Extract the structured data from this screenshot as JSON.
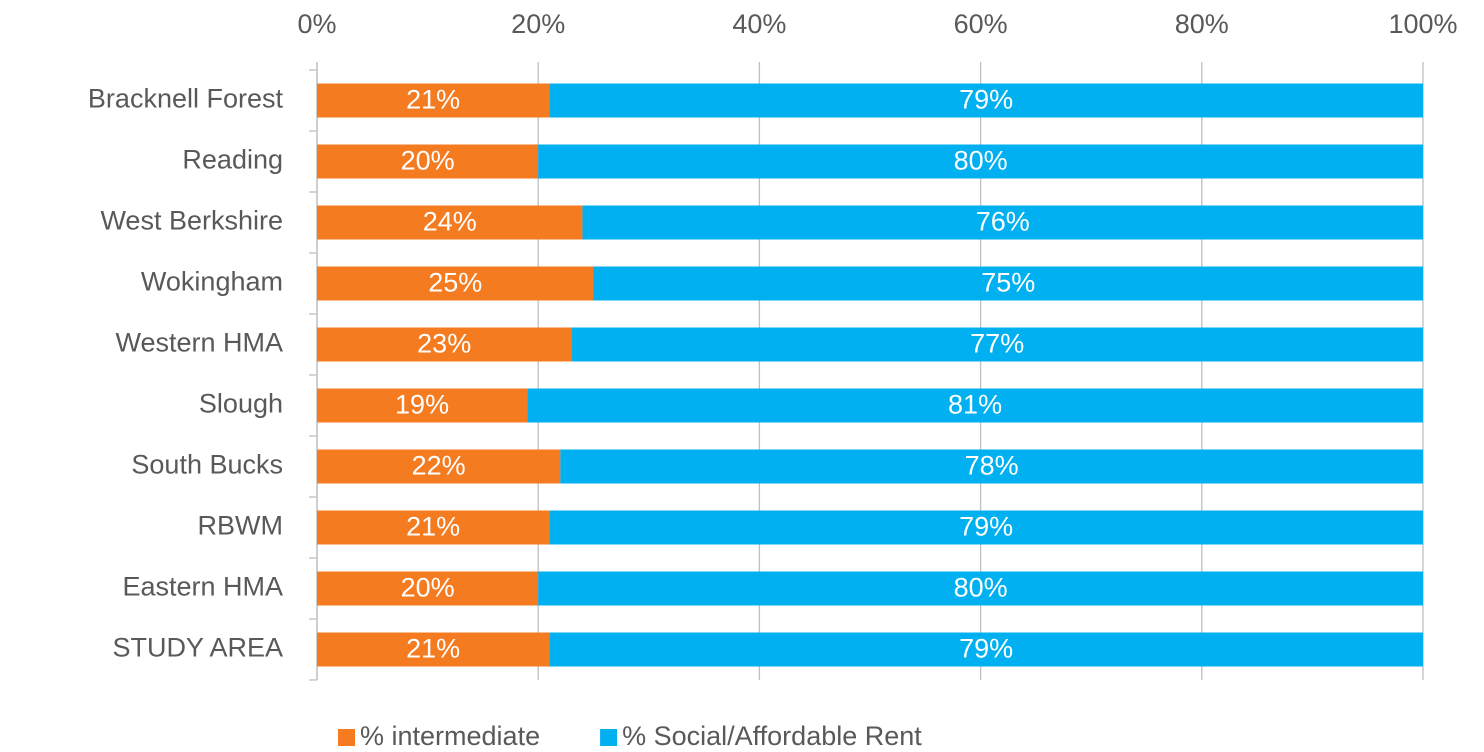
{
  "chart_data": {
    "type": "bar",
    "orientation": "horizontal",
    "stacked": true,
    "categories": [
      "Bracknell Forest",
      "Reading",
      "West Berkshire",
      "Wokingham",
      "Western HMA",
      "Slough",
      "South Bucks",
      "RBWM",
      "Eastern HMA",
      "STUDY AREA"
    ],
    "series": [
      {
        "name": "% intermediate",
        "color": "#f47b20",
        "values": [
          21,
          20,
          24,
          25,
          23,
          19,
          22,
          21,
          20,
          21
        ],
        "value_labels": [
          "21%",
          "20%",
          "24%",
          "25%",
          "23%",
          "19%",
          "22%",
          "21%",
          "20%",
          "21%"
        ]
      },
      {
        "name": "% Social/Affordable Rent",
        "color": "#00b0f0",
        "values": [
          79,
          80,
          76,
          75,
          77,
          81,
          78,
          79,
          80,
          79
        ],
        "value_labels": [
          "79%",
          "80%",
          "76%",
          "75%",
          "77%",
          "81%",
          "78%",
          "79%",
          "80%",
          "79%"
        ]
      }
    ],
    "xlim": [
      0,
      100
    ],
    "xticks": [
      {
        "value": 0,
        "label": "0%"
      },
      {
        "value": 20,
        "label": "20%"
      },
      {
        "value": 40,
        "label": "40%"
      },
      {
        "value": 60,
        "label": "60%"
      },
      {
        "value": 80,
        "label": "80%"
      },
      {
        "value": 100,
        "label": "100%"
      }
    ],
    "grid": true,
    "legend": "bottom"
  }
}
